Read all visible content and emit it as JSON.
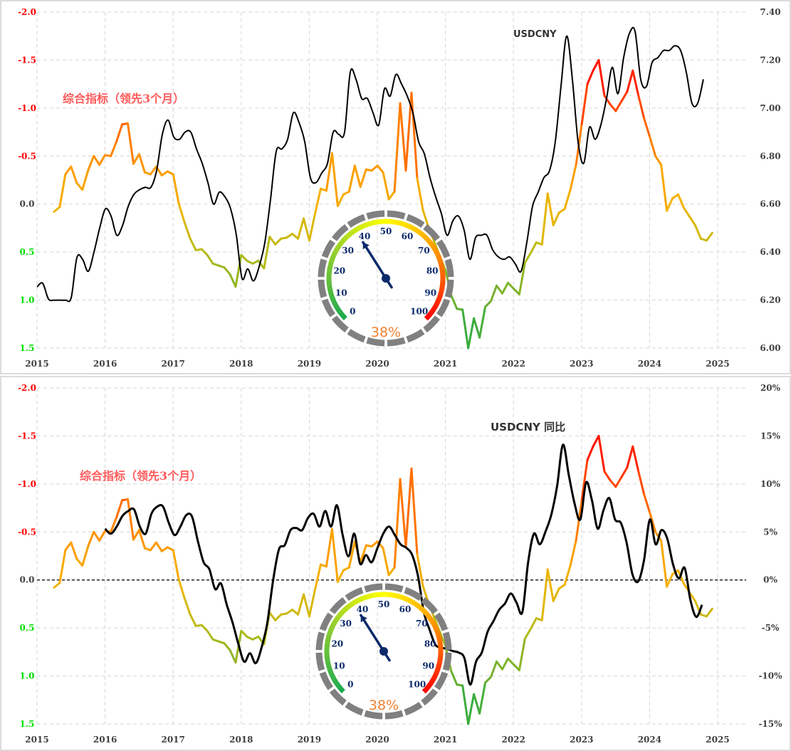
{
  "chart_data": [
    {
      "type": "line",
      "title": "USDCNY",
      "annotation_left": "综合指标（领先3个月）",
      "annotation_right": "USDCNY",
      "x_ticks": [
        "2015",
        "2016",
        "2017",
        "2018",
        "2019",
        "2020",
        "2021",
        "2022",
        "2023",
        "2024",
        "2025"
      ],
      "xlim": [
        2015,
        2025
      ],
      "left_axis": {
        "ticks": [
          "-2.0",
          "-1.5",
          "-1.0",
          "-0.5",
          "0.0",
          "0.5",
          "1.0",
          "1.5"
        ],
        "ylim": [
          -2.0,
          1.5
        ],
        "inverted": true
      },
      "right_axis": {
        "ticks": [
          "7.40",
          "7.20",
          "7.00",
          "6.80",
          "6.60",
          "6.40",
          "6.20",
          "6.00"
        ],
        "ylim": [
          6.0,
          7.4
        ]
      },
      "grid": true,
      "series": [
        {
          "name": "综合指标（领先3个月）",
          "axis": "left",
          "x_start": 2015.25,
          "x_end": 2024.92,
          "values": [
            0.08,
            0.03,
            -0.31,
            -0.39,
            -0.22,
            -0.15,
            -0.35,
            -0.5,
            -0.41,
            -0.51,
            -0.5,
            -0.65,
            -0.83,
            -0.84,
            -0.42,
            -0.52,
            -0.33,
            -0.31,
            -0.39,
            -0.3,
            -0.34,
            -0.31,
            0.0,
            0.19,
            0.36,
            0.48,
            0.47,
            0.53,
            0.62,
            0.64,
            0.66,
            0.73,
            0.86,
            0.53,
            0.59,
            0.62,
            0.59,
            0.67,
            0.34,
            0.42,
            0.36,
            0.35,
            0.31,
            0.36,
            0.15,
            0.38,
            0.1,
            -0.16,
            -0.14,
            -0.53,
            0.02,
            -0.1,
            -0.13,
            -0.4,
            -0.18,
            -0.36,
            -0.35,
            -0.4,
            -0.33,
            -0.05,
            -0.13,
            -1.05,
            -0.35,
            -1.16,
            -0.27,
            0.06,
            0.24,
            0.39,
            0.54,
            0.69,
            0.95,
            1.09,
            1.1,
            1.5,
            1.19,
            1.39,
            1.07,
            1.01,
            0.85,
            0.93,
            0.82,
            0.88,
            0.94,
            0.61,
            0.51,
            0.4,
            0.42,
            -0.11,
            0.22,
            0.09,
            0.05,
            -0.15,
            -0.41,
            -0.83,
            -1.25,
            -1.39,
            -1.5,
            -1.13,
            -1.04,
            -0.97,
            -1.07,
            -1.17,
            -1.39,
            -1.13,
            -0.89,
            -0.7,
            -0.5,
            -0.41,
            0.07,
            -0.06,
            -0.1,
            0.04,
            0.13,
            0.22,
            0.36,
            0.38,
            0.3
          ]
        },
        {
          "name": "USDCNY",
          "axis": "right",
          "color": "#000000",
          "x_start": 2015.0,
          "x_end": 2024.79,
          "values": [
            6.255,
            6.27,
            6.205,
            6.2,
            6.2,
            6.2,
            6.21,
            6.377,
            6.37,
            6.32,
            6.4,
            6.5,
            6.58,
            6.55,
            6.47,
            6.51,
            6.59,
            6.64,
            6.66,
            6.67,
            6.67,
            6.74,
            6.89,
            6.95,
            6.88,
            6.87,
            6.9,
            6.9,
            6.83,
            6.77,
            6.69,
            6.6,
            6.65,
            6.63,
            6.58,
            6.47,
            6.29,
            6.33,
            6.28,
            6.34,
            6.44,
            6.62,
            6.82,
            6.83,
            6.87,
            6.98,
            6.94,
            6.86,
            6.71,
            6.69,
            6.73,
            6.77,
            6.9,
            6.89,
            6.9,
            7.15,
            7.12,
            7.04,
            7.04,
            6.98,
            6.93,
            7.08,
            7.05,
            7.14,
            7.1,
            7.05,
            6.98,
            6.86,
            6.81,
            6.71,
            6.63,
            6.56,
            6.47,
            6.53,
            6.55,
            6.49,
            6.37,
            6.46,
            6.47,
            6.47,
            6.41,
            6.38,
            6.37,
            6.38,
            6.35,
            6.32,
            6.44,
            6.59,
            6.65,
            6.71,
            6.74,
            6.86,
            7.09,
            7.3,
            7.12,
            6.86,
            6.77,
            6.92,
            6.87,
            6.93,
            7.04,
            7.17,
            7.06,
            7.21,
            7.31,
            7.32,
            7.12,
            7.09,
            7.19,
            7.21,
            7.24,
            7.24,
            7.26,
            7.24,
            7.15,
            7.02,
            7.02,
            7.12
          ]
        }
      ],
      "gauge": {
        "value": 38,
        "label": "38%",
        "ticks": [
          "0",
          "10",
          "20",
          "30",
          "40",
          "50",
          "60",
          "70",
          "80",
          "90",
          "100"
        ]
      }
    },
    {
      "type": "line",
      "title": "USDCNY 同比",
      "annotation_left": "综合指标（领先3个月）",
      "annotation_right": "USDCNY  同比",
      "x_ticks": [
        "2015",
        "2016",
        "2017",
        "2018",
        "2019",
        "2020",
        "2021",
        "2022",
        "2023",
        "2024",
        "2025"
      ],
      "xlim": [
        2015,
        2025
      ],
      "left_axis": {
        "ticks": [
          "-2.0",
          "-1.5",
          "-1.0",
          "-0.5",
          "0.0",
          "0.5",
          "1.0",
          "1.5"
        ],
        "ylim": [
          -2.0,
          1.5
        ],
        "inverted": true
      },
      "right_axis": {
        "ticks": [
          "20%",
          "15%",
          "10%",
          "5%",
          "0%",
          "-5%",
          "-10%",
          "-15%"
        ],
        "ylim": [
          -15,
          20
        ]
      },
      "zero_line": true,
      "grid": true,
      "series": [
        {
          "name": "综合指标（领先3个月）",
          "axis": "left",
          "same_as_top": true
        },
        {
          "name": "USDCNY 同比",
          "axis": "right",
          "color": "#000000",
          "x_start": 2016.0,
          "x_end": 2024.77,
          "values": [
            5.34,
            4.82,
            5.56,
            6.67,
            7.19,
            7.34,
            5.56,
            4.82,
            6.89,
            7.64,
            7.64,
            5.93,
            4.67,
            5.56,
            6.75,
            6.6,
            4.08,
            1.85,
            1.11,
            -0.96,
            -0.37,
            -2.59,
            -4.45,
            -6.67,
            -8.52,
            -7.64,
            -8.67,
            -7.04,
            -4.45,
            0.0,
            3.19,
            3.63,
            5.19,
            5.41,
            5.19,
            6.45,
            6.89,
            5.56,
            7.19,
            5.56,
            7.78,
            4.67,
            2.45,
            4.82,
            1.7,
            2.59,
            1.85,
            3.34,
            4.82,
            5.56,
            4.67,
            3.71,
            3.34,
            2.59,
            0.37,
            -3.34,
            -5.19,
            -6.75,
            -7.04,
            -7.19,
            -7.41,
            -7.56,
            -8.15,
            -10.9,
            -8.52,
            -7.56,
            -5.41,
            -4.3,
            -3.11,
            -2.45,
            -1.41,
            -2.37,
            -3.34,
            1.85,
            4.82,
            3.71,
            5.04,
            6.82,
            9.79,
            14.08,
            10.97,
            8.01,
            6.3,
            10.16,
            8.3,
            5.34,
            7.26,
            8.52,
            6.3,
            5.93,
            3.85,
            0.59,
            -0.15,
            2.08,
            6.3,
            3.71,
            5.19,
            4.3,
            1.63,
            0.15,
            1.26,
            -2.08,
            -3.85,
            -2.59
          ]
        }
      ],
      "gauge": {
        "value": 38,
        "label": "38%",
        "ticks": [
          "0",
          "10",
          "20",
          "30",
          "40",
          "50",
          "60",
          "70",
          "80",
          "90",
          "100"
        ]
      }
    }
  ],
  "colors": {
    "left_neg": "#ff0000",
    "left_zero": "#404040",
    "left_pos": "#00e000",
    "annotation": "#ff5a5a",
    "gauge_value": "#f08030",
    "needle": "#0b2a6a",
    "ring": "#808080"
  }
}
